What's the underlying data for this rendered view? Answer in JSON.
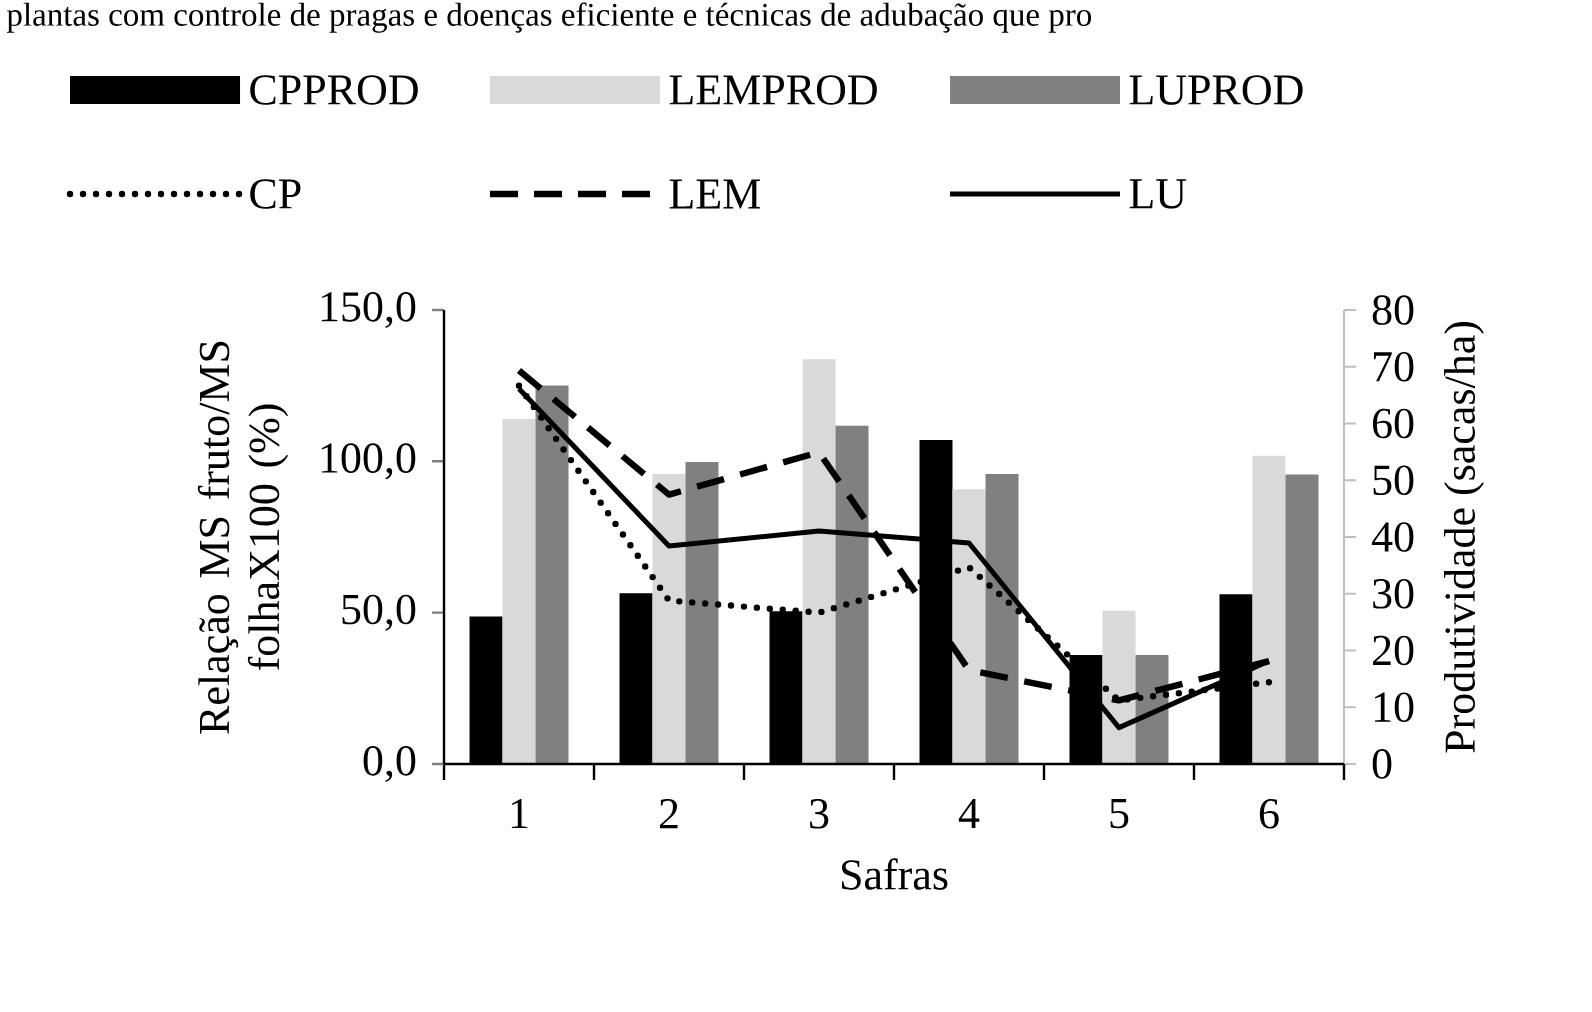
{
  "chart_data": {
    "type": "bar",
    "xlabel": "Safras",
    "ylabel": "Relação MS fruto/MS folhaX100 (%)",
    "y2label": "Produtividade (sacas/ha)",
    "annotations": [
      "plantas com controle de pragas e doenças eficiente e técnicas de adubação que pro"
    ],
    "categories": [
      "1",
      "2",
      "3",
      "4",
      "5",
      "6"
    ],
    "series": [
      {
        "name": "CPPROD",
        "axis": "y2",
        "color": "#000000",
        "values": [
          26.0,
          30.1,
          26.9,
          57.1,
          19.2,
          29.9
        ]
      },
      {
        "name": "LEMPROD",
        "axis": "y2",
        "color": "#d9d9d9",
        "values": [
          60.8,
          51.1,
          71.3,
          48.4,
          27.0,
          54.3
        ]
      },
      {
        "name": "LUPROD",
        "axis": "y2",
        "color": "#808080",
        "values": [
          66.7,
          53.2,
          59.6,
          51.1,
          19.2,
          51.0
        ]
      },
      {
        "name": "CP",
        "type": "line",
        "line_style": "dotted",
        "color": "#000000",
        "values": [
          125,
          54,
          50,
          65,
          21,
          27
        ]
      },
      {
        "name": "LEM",
        "type": "line",
        "line_style": "dashed",
        "color": "#000000",
        "values": [
          130,
          89,
          103,
          31,
          21,
          34
        ]
      },
      {
        "name": "LU",
        "type": "line",
        "line_style": "solid",
        "color": "#000000",
        "values": [
          124,
          72,
          77,
          73,
          12,
          34
        ]
      }
    ],
    "ylim": [
      0,
      150
    ],
    "yticks": [
      {
        "value": 0,
        "label": "0,0"
      },
      {
        "value": 50,
        "label": "50,0"
      },
      {
        "value": 100,
        "label": "100,0"
      },
      {
        "value": 150,
        "label": "150,0"
      }
    ],
    "y2lim": [
      0,
      80
    ],
    "y2ticks": [
      0,
      10,
      20,
      30,
      40,
      50,
      60,
      70,
      80
    ],
    "legend": "top",
    "marker": "none"
  }
}
